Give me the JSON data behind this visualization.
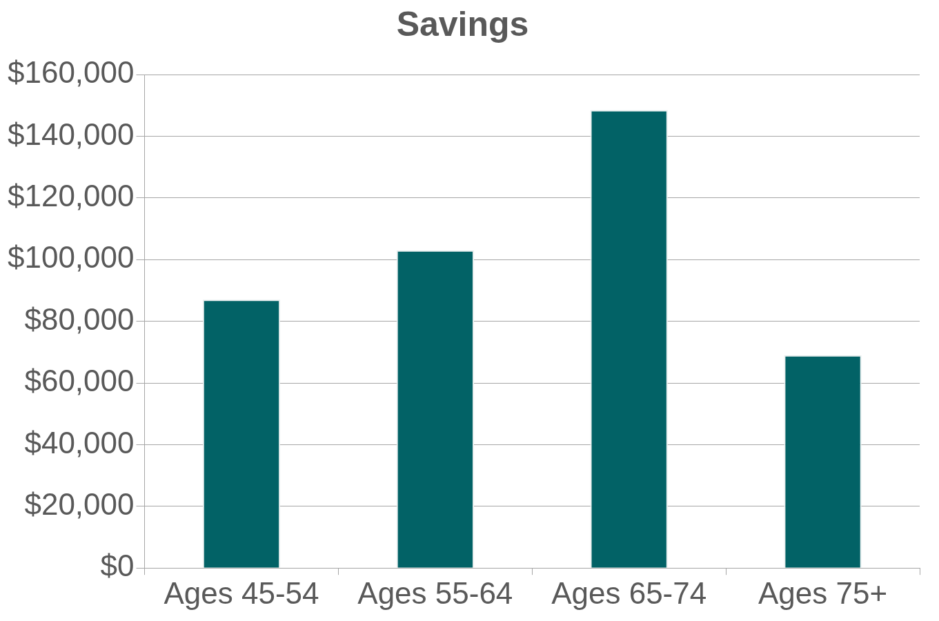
{
  "chart_data": {
    "type": "bar",
    "title": "Savings",
    "categories": [
      "Ages 45-54",
      "Ages 55-64",
      "Ages 65-74",
      "Ages 75+"
    ],
    "values": [
      87000,
      103000,
      148500,
      69000
    ],
    "color": "#026266",
    "ylim": [
      0,
      160000
    ],
    "yticks": [
      {
        "value": 0,
        "label": "$0"
      },
      {
        "value": 20000,
        "label": "$20,000"
      },
      {
        "value": 40000,
        "label": "$40,000"
      },
      {
        "value": 60000,
        "label": "$60,000"
      },
      {
        "value": 80000,
        "label": "$80,000"
      },
      {
        "value": 100000,
        "label": "$100,000"
      },
      {
        "value": 120000,
        "label": "$120,000"
      },
      {
        "value": 140000,
        "label": "$140,000"
      },
      {
        "value": 160000,
        "label": "$160,000"
      }
    ],
    "grid": "y"
  }
}
